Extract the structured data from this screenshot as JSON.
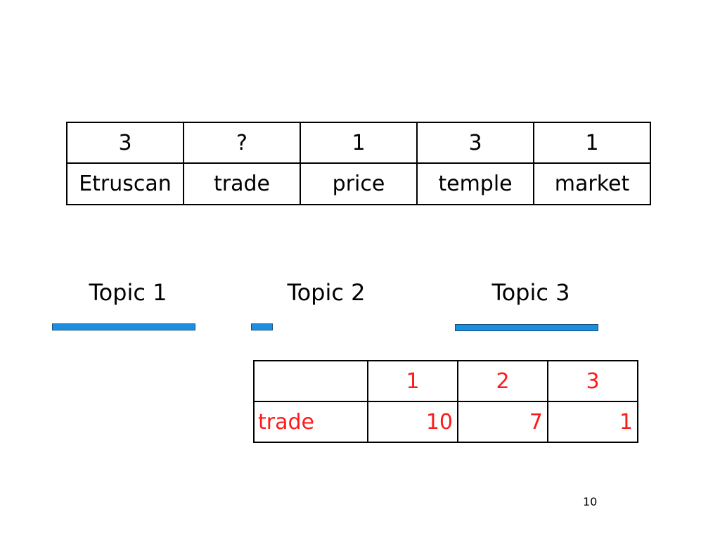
{
  "assignment_table": {
    "topics": [
      "3",
      "?",
      "1",
      "3",
      "1"
    ],
    "words": [
      "Etruscan",
      "trade",
      "price",
      "temple",
      "market"
    ]
  },
  "topics": [
    {
      "label": "Topic 1",
      "bar_fraction": 1.0
    },
    {
      "label": "Topic 2",
      "bar_fraction": 0.15
    },
    {
      "label": "Topic 3",
      "bar_fraction": 1.0
    }
  ],
  "count_table": {
    "headers": [
      "",
      "1",
      "2",
      "3"
    ],
    "row_label": "trade",
    "values": [
      "10",
      "7",
      "1"
    ]
  },
  "colors": {
    "bar": "#1a8fe0",
    "count_text": "#ff1a1a"
  },
  "page_number": "10"
}
